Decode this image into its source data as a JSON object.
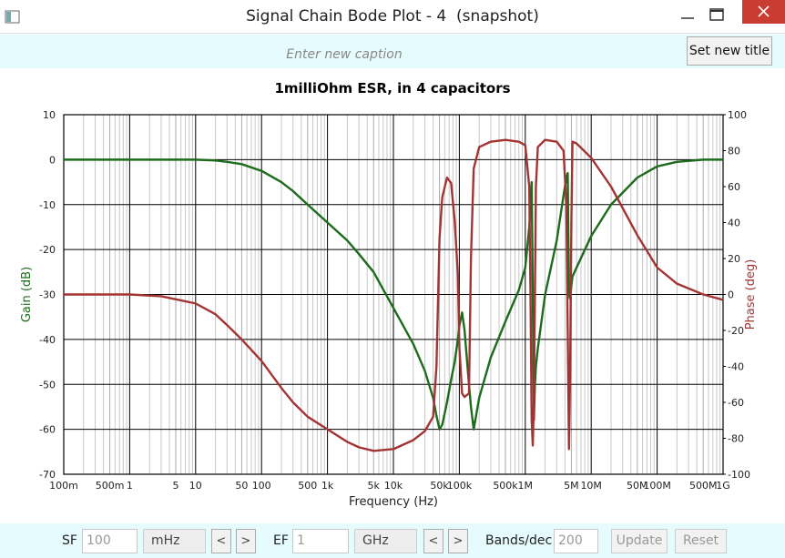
{
  "window": {
    "title": "Signal Chain Bode Plot - 4  (snapshot)"
  },
  "caption_bar": {
    "placeholder": "Enter new caption",
    "button": "Set new title"
  },
  "chart_data": {
    "type": "line",
    "title": "1milliOhm ESR, in 4 capacitors",
    "x_label": "Frequency (Hz)",
    "y_label": "Gain (dB)",
    "y2_label": "Phase (deg)",
    "x_scale": "log",
    "grid": true,
    "xlim": [
      0.1,
      1000000000
    ],
    "xticks": [
      {
        "value": 0.1,
        "label": "100m"
      },
      {
        "value": 0.5,
        "label": "500m"
      },
      1,
      5,
      10,
      50,
      100,
      500,
      {
        "value": 1000,
        "label": "1k"
      },
      {
        "value": 5000,
        "label": "5k"
      },
      {
        "value": 10000,
        "label": "10k"
      },
      {
        "value": 50000,
        "label": "50k"
      },
      {
        "value": 100000,
        "label": "100k"
      },
      {
        "value": 500000,
        "label": "500k"
      },
      {
        "value": 1000000,
        "label": "1M"
      },
      {
        "value": 5000000,
        "label": "5M"
      },
      {
        "value": 10000000,
        "label": "10M"
      },
      {
        "value": 50000000,
        "label": "50M"
      },
      {
        "value": 100000000,
        "label": "100M"
      },
      {
        "value": 500000000,
        "label": "500M"
      },
      {
        "value": 1000000000,
        "label": "1G"
      }
    ],
    "ylim": [
      -70,
      10
    ],
    "yticks": [
      -70,
      -60,
      -50,
      -40,
      -30,
      -20,
      -10,
      0,
      10
    ],
    "y2lim": [
      -100,
      100
    ],
    "y2ticks": [
      -100,
      -80,
      -60,
      -40,
      -20,
      0,
      20,
      40,
      60,
      80,
      100
    ],
    "x": [
      0.1,
      0.3,
      1,
      3,
      10,
      20,
      30,
      50,
      100,
      200,
      300,
      500,
      1000,
      2000,
      3000,
      5000,
      10000,
      20000,
      30000,
      40000,
      45000,
      50000,
      55000,
      65000,
      75000,
      85000,
      95000,
      100000,
      110000,
      120000,
      140000,
      150000,
      165000,
      200000,
      300000,
      500000,
      800000,
      1000000,
      1150000,
      1200000,
      1250000,
      1300000,
      1350000,
      1400000,
      1450000,
      1550000,
      2000000,
      3000000,
      3800000,
      4200000,
      4400000,
      4600000,
      4800000,
      5000000,
      5200000,
      6000000,
      10000000,
      20000000,
      50000000,
      100000000,
      200000000,
      500000000,
      1000000000
    ],
    "series": [
      {
        "color": "#1d6b1d",
        "values": [
          0,
          0,
          0,
          0,
          0,
          -0.2,
          -0.5,
          -1,
          -2.5,
          -5,
          -7,
          -10,
          -14,
          -18,
          -21,
          -25,
          -33,
          -41,
          -47,
          -53,
          -57,
          -60,
          -59,
          -54,
          -49,
          -45,
          -40,
          -37,
          -34,
          -38,
          -50,
          -55,
          -60,
          -53,
          -44,
          -36,
          -29,
          -24,
          -15,
          -10,
          -5,
          -30,
          -58,
          -50,
          -46,
          -42,
          -30,
          -18,
          -8,
          -4,
          -3,
          -30,
          -31,
          -28,
          -26,
          -24,
          -17,
          -10,
          -4,
          -1.5,
          -0.5,
          0,
          0
        ]
      },
      {
        "color": "#a33434",
        "axis": "y2",
        "values": [
          0,
          0,
          0,
          -1,
          -5,
          -11,
          -17,
          -25,
          -37,
          -52,
          -60,
          -68,
          -75,
          -82,
          -85,
          -87,
          -86,
          -81,
          -76,
          -68,
          -40,
          31,
          54,
          65,
          62,
          41,
          11,
          -29,
          -55,
          -57,
          -55,
          20,
          70,
          82,
          85,
          86,
          85,
          83,
          60,
          0,
          -70,
          -84,
          -60,
          0,
          60,
          82,
          86,
          85,
          80,
          50,
          -20,
          -86,
          -40,
          40,
          85,
          84,
          76,
          60,
          33,
          15,
          6,
          0,
          -3
        ]
      }
    ]
  },
  "controls": {
    "sf_label": "SF",
    "sf_value": 100,
    "sf_unit": "mHz",
    "prev": "<",
    "next": ">",
    "ef_label": "EF",
    "ef_value": 1,
    "ef_unit": "GHz",
    "bands_label": "Bands/dec",
    "bands_value": 200,
    "update": "Update",
    "reset": "Reset"
  }
}
